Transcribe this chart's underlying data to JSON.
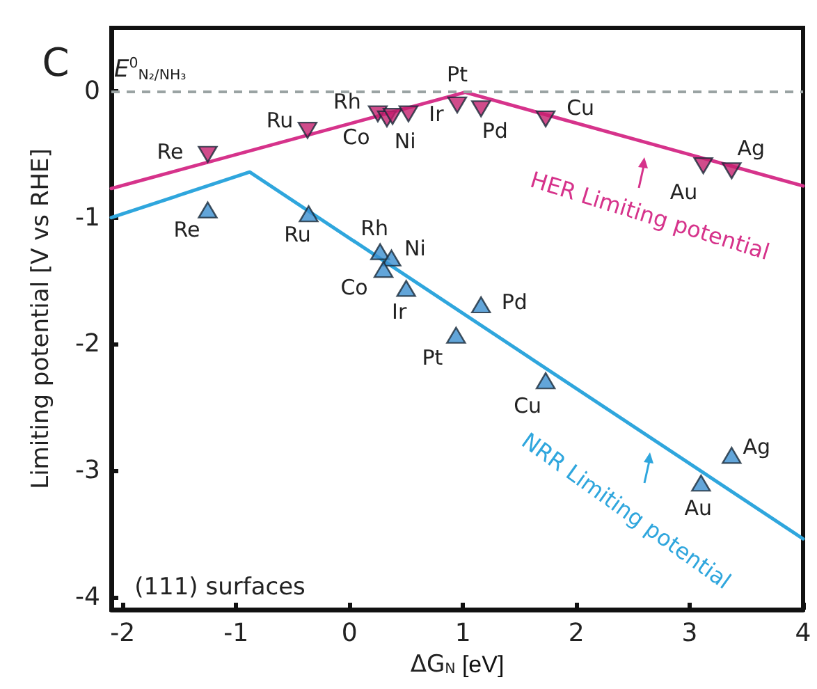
{
  "chart_data": {
    "type": "scatter",
    "xlabel": "ΔG$_{N}$ [eV]",
    "ylabel": "Limiting potential [V vs RHE]",
    "xlim": [
      -2.1,
      4
    ],
    "ylim": [
      -4.1,
      0.5
    ],
    "xticks": [
      -2,
      -1,
      0,
      1,
      2,
      3,
      4
    ],
    "yticks": [
      -4,
      -3,
      -2,
      -1,
      0
    ],
    "grid": false,
    "series": [
      {
        "type": "line",
        "color": "#d6338b",
        "marker": "none",
        "line_style": "solid",
        "x": [
          -2.1,
          1.02,
          4
        ],
        "values": [
          -0.77,
          -0.01,
          -0.75
        ]
      },
      {
        "type": "line",
        "color": "#2fa6dd",
        "marker": "none",
        "line_style": "solid",
        "x": [
          -2.1,
          -0.88,
          4
        ],
        "values": [
          -1.0,
          -0.64,
          -3.54
        ]
      },
      {
        "color": "#c41f6e",
        "marker": "triangle-down",
        "x": [
          -1.25,
          -0.37,
          0.25,
          0.33,
          0.38,
          0.52,
          0.95,
          1.16,
          1.73,
          3.12,
          3.37
        ],
        "values": [
          -0.5,
          -0.31,
          -0.18,
          -0.22,
          -0.2,
          -0.18,
          -0.11,
          -0.14,
          -0.22,
          -0.59,
          -0.63
        ]
      },
      {
        "color": "#3b8fcf",
        "marker": "triangle",
        "x": [
          -1.25,
          -0.36,
          0.27,
          0.37,
          0.3,
          0.5,
          1.16,
          0.94,
          1.73,
          3.1,
          3.37
        ],
        "values": [
          -0.94,
          -0.97,
          -1.27,
          -1.32,
          -1.41,
          -1.56,
          -1.69,
          -1.93,
          -2.29,
          -3.1,
          -2.88
        ]
      }
    ],
    "ref_lines": [
      {
        "axis": "y",
        "value": 0,
        "label": "E$^{0}$$_{N₂/NH₃}$",
        "color": "#9aa3a3",
        "line_style": "dashed"
      }
    ],
    "annotations": [
      "C",
      "(111) surfaces",
      "HER Limiting potential",
      "NRR Limiting potential",
      {
        "text": "Re",
        "x": -1.25,
        "y": -0.5
      },
      {
        "text": "Ru",
        "x": -0.37,
        "y": -0.31
      },
      {
        "text": "Rh",
        "x": 0.25,
        "y": -0.18
      },
      {
        "text": "Co",
        "x": 0.33,
        "y": -0.22
      },
      {
        "text": "Ni",
        "x": 0.38,
        "y": -0.2
      },
      {
        "text": "Ir",
        "x": 0.52,
        "y": -0.18
      },
      {
        "text": "Pt",
        "x": 0.95,
        "y": -0.11
      },
      {
        "text": "Pd",
        "x": 1.16,
        "y": -0.14
      },
      {
        "text": "Cu",
        "x": 1.73,
        "y": -0.22
      },
      {
        "text": "Au",
        "x": 3.12,
        "y": -0.59
      },
      {
        "text": "Ag",
        "x": 3.37,
        "y": -0.63
      },
      {
        "text": "Re",
        "x": -1.25,
        "y": -0.94
      },
      {
        "text": "Ru",
        "x": -0.36,
        "y": -0.97
      },
      {
        "text": "Rh",
        "x": 0.27,
        "y": -1.27
      },
      {
        "text": "Ni",
        "x": 0.37,
        "y": -1.32
      },
      {
        "text": "Co",
        "x": 0.3,
        "y": -1.41
      },
      {
        "text": "Ir",
        "x": 0.5,
        "y": -1.56
      },
      {
        "text": "Pd",
        "x": 1.16,
        "y": -1.69
      },
      {
        "text": "Pt",
        "x": 0.94,
        "y": -1.93
      },
      {
        "text": "Cu",
        "x": 1.73,
        "y": -2.29
      },
      {
        "text": "Au",
        "x": 3.1,
        "y": -3.1
      },
      {
        "text": "Ag",
        "x": 3.37,
        "y": -2.88
      }
    ]
  }
}
